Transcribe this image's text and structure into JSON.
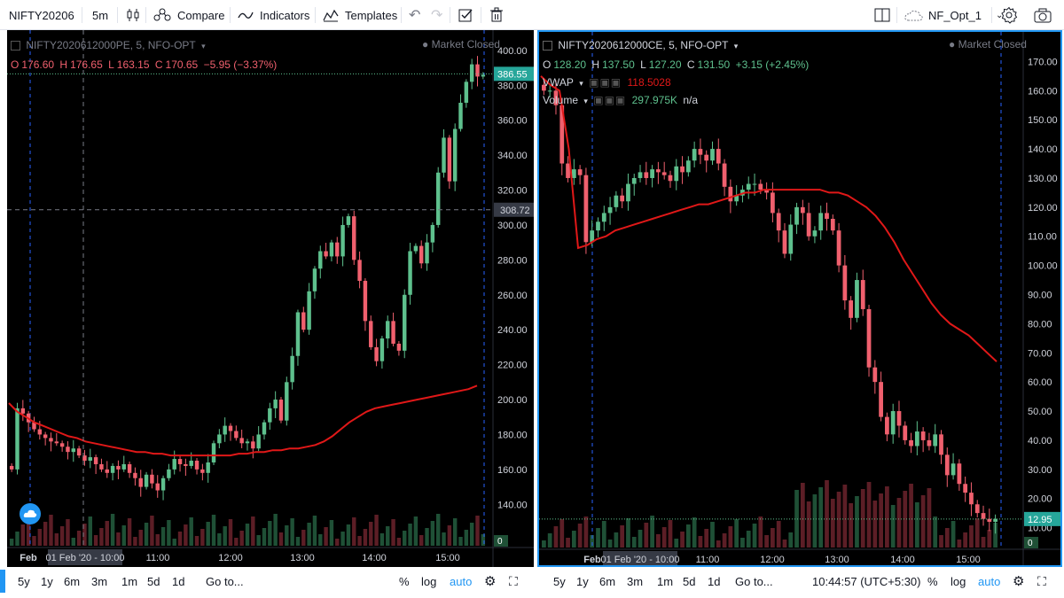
{
  "toolbar": {
    "symbol": "NIFTY20206",
    "interval": "5m",
    "compare": "Compare",
    "indicators": "Indicators",
    "templates": "Templates",
    "layout_name": "NF_Opt_1"
  },
  "left_pane": {
    "title": "NIFTY2020612000PE, 5, NFO-OPT",
    "market_status": "Market Closed",
    "ohlc": {
      "o_label": "O",
      "o": "176.60",
      "h_label": "H",
      "h": "176.65",
      "l_label": "L",
      "l": "163.15",
      "c_label": "C",
      "c": "170.65",
      "change": "−5.95 (−3.37%)"
    },
    "price_tag": "386.55",
    "crosshair_tag": "308.72",
    "volume_tag": "0",
    "yaxis_ticks": [
      "400.00",
      "380.00",
      "360.00",
      "340.00",
      "320.00",
      "300.00",
      "280.00",
      "260.00",
      "240.00",
      "220.00",
      "200.00",
      "180.00",
      "160.00",
      "140.00"
    ],
    "xaxis_ticks": [
      "Feb",
      "11:00",
      "12:00",
      "13:00",
      "14:00",
      "15:00"
    ],
    "date_tag": "01 Feb '20 - 10:00",
    "ranges": [
      "5y",
      "1y",
      "6m",
      "3m",
      "1m",
      "5d",
      "1d"
    ],
    "goto": "Go to...",
    "percent": "%",
    "log": "log",
    "auto": "auto"
  },
  "right_pane": {
    "title": "NIFTY2020612000CE, 5, NFO-OPT",
    "market_status": "Market Closed",
    "ohlc": {
      "o_label": "O",
      "o": "128.20",
      "h_label": "H",
      "h": "137.50",
      "l_label": "L",
      "l": "127.20",
      "c_label": "C",
      "c": "131.50",
      "change": "+3.15 (+2.45%)"
    },
    "vwap_label": "VWAP",
    "vwap_value": "118.5028",
    "volume_label": "Volume",
    "volume_value": "297.975K",
    "volume_na": "n/a",
    "price_tag": "12.95",
    "volume_tag": "0",
    "yaxis_ticks": [
      "170.00",
      "160.00",
      "150.00",
      "140.00",
      "130.00",
      "120.00",
      "110.00",
      "100.00",
      "90.00",
      "80.00",
      "70.00",
      "60.00",
      "50.00",
      "40.00",
      "30.00",
      "20.00",
      "10.00"
    ],
    "xaxis_ticks": [
      "Feb",
      "11:00",
      "12:00",
      "13:00",
      "14:00",
      "15:00"
    ],
    "date_tag": "01 Feb '20 - 10:00",
    "ranges": [
      "5y",
      "1y",
      "6m",
      "3m",
      "1m",
      "5d",
      "1d"
    ],
    "goto": "Go to...",
    "clock": "10:44:57 (UTC+5:30)",
    "percent": "%",
    "log": "log",
    "auto": "auto"
  },
  "colors": {
    "up": "#5ec08d",
    "down": "#f0606e",
    "vwap": "#e01818",
    "accent": "#2196f3",
    "pane_border": "#2196f3"
  },
  "icons": [
    "candles-icon",
    "compare-icon",
    "indicators-icon",
    "templates-icon",
    "undo-icon",
    "redo-icon",
    "checkbox-icon",
    "trash-icon",
    "split-layout-icon",
    "cloud-icon",
    "chevron-down-icon",
    "gear-icon",
    "camera-icon",
    "fullscreen-icon"
  ],
  "chart_data": [
    {
      "type": "candlestick",
      "title": "NIFTY2020612000PE, 5, NFO-OPT",
      "ylim": [
        130,
        405
      ],
      "xlabels": [
        "Feb",
        "11:00",
        "12:00",
        "13:00",
        "14:00",
        "15:00"
      ],
      "close": [
        160,
        195,
        192,
        187,
        183,
        180,
        178,
        176,
        175,
        173,
        170,
        172,
        168,
        165,
        167,
        163,
        160,
        158,
        162,
        160,
        163,
        158,
        155,
        150,
        157,
        152,
        148,
        155,
        160,
        166,
        163,
        162,
        165,
        160,
        158,
        164,
        175,
        180,
        185,
        182,
        178,
        175,
        176,
        172,
        180,
        187,
        195,
        200,
        188,
        210,
        225,
        250,
        240,
        262,
        275,
        285,
        282,
        290,
        282,
        300,
        305,
        280,
        268,
        245,
        230,
        222,
        235,
        245,
        232,
        228,
        260,
        285,
        288,
        278,
        290,
        300,
        330,
        350,
        325,
        355,
        370,
        382,
        392,
        385,
        386
      ],
      "open_offsets_note": "",
      "vwap": [
        198,
        193,
        190,
        187,
        185,
        183,
        181,
        179,
        178,
        176,
        175,
        174,
        173,
        172,
        171,
        170,
        170,
        169,
        169,
        168,
        168,
        168,
        168,
        168,
        168,
        168,
        168,
        169,
        169,
        170,
        170,
        171,
        171,
        172,
        172,
        173,
        174,
        176,
        179,
        183,
        187,
        190,
        193,
        195,
        196,
        197,
        198,
        199,
        200,
        201,
        202,
        203,
        204,
        205,
        206,
        208
      ]
    },
    {
      "type": "candlestick",
      "title": "NIFTY2020612000CE, 5, NFO-OPT",
      "ylim": [
        5,
        175
      ],
      "xlabels": [
        "Feb",
        "11:00",
        "12:00",
        "13:00",
        "14:00",
        "15:00"
      ],
      "close": [
        160,
        160,
        155,
        135,
        130,
        133,
        131,
        108,
        112,
        115,
        118,
        120,
        124,
        122,
        128,
        130,
        132,
        130,
        133,
        132,
        131,
        129,
        134,
        132,
        136,
        140,
        138,
        136,
        140,
        135,
        127,
        122,
        124,
        126,
        128,
        128,
        126,
        125,
        118,
        112,
        104,
        114,
        120,
        118,
        110,
        112,
        118,
        116,
        112,
        100,
        88,
        82,
        95,
        85,
        65,
        60,
        48,
        42,
        50,
        45,
        40,
        38,
        43,
        40,
        38,
        42,
        35,
        28,
        32,
        25,
        22,
        18,
        15,
        13,
        12,
        13
      ],
      "vwap": [
        165,
        162,
        160,
        140,
        106,
        107,
        109,
        110,
        112,
        113,
        114,
        115,
        116,
        117,
        118,
        119,
        120,
        121,
        121,
        122,
        123,
        124,
        125,
        125,
        126,
        126,
        126,
        126,
        126,
        126,
        126,
        125,
        125,
        124,
        122,
        120,
        117,
        113,
        108,
        102,
        97,
        92,
        87,
        83,
        80,
        78,
        76,
        73,
        70,
        67
      ]
    }
  ]
}
